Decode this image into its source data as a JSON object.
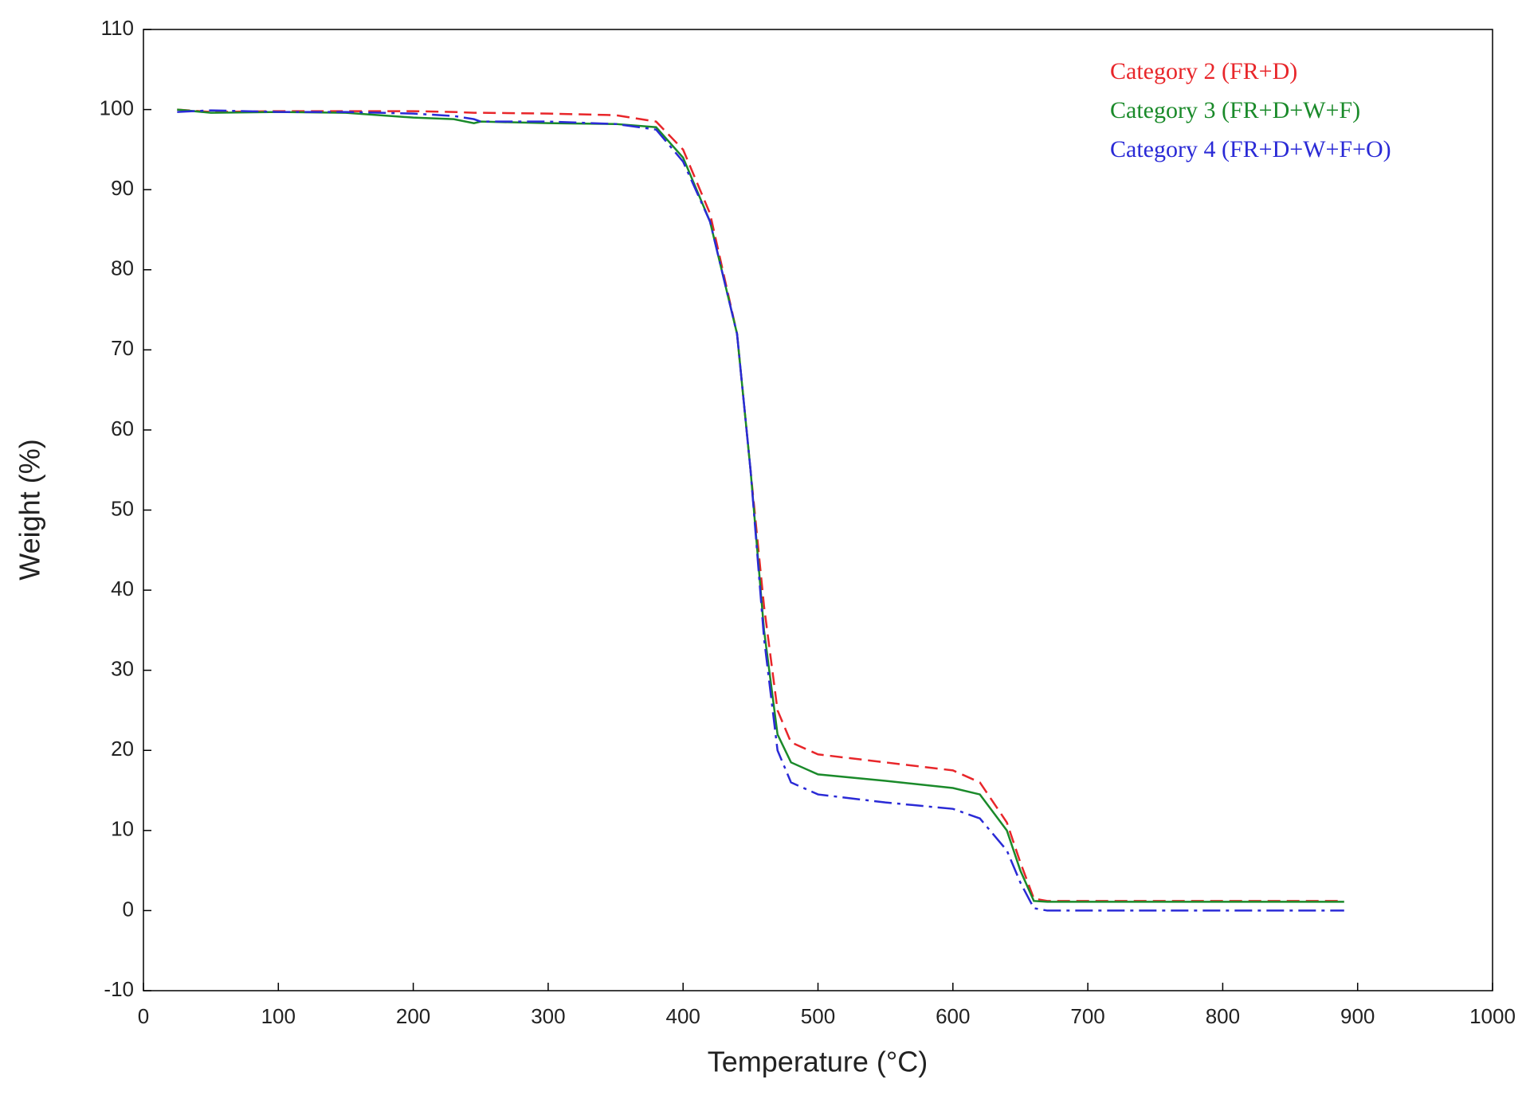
{
  "chart_data": {
    "type": "line",
    "x_label": "Temperature (°C)",
    "y_label": "Weight (%)",
    "xlim": [
      0,
      1000
    ],
    "ylim": [
      -10,
      110
    ],
    "xticks": [
      0,
      100,
      200,
      300,
      400,
      500,
      600,
      700,
      800,
      900,
      1000
    ],
    "yticks": [
      -10,
      0,
      10,
      20,
      30,
      40,
      50,
      60,
      70,
      80,
      90,
      100,
      110
    ],
    "legend": "top-right",
    "x": [
      25,
      50,
      100,
      150,
      200,
      230,
      245,
      250,
      300,
      350,
      380,
      400,
      420,
      440,
      450,
      460,
      470,
      480,
      500,
      550,
      600,
      620,
      640,
      650,
      660,
      670,
      700,
      800,
      890
    ],
    "series": [
      {
        "name": "Category 2 (FR+D)",
        "color": "#e8262a",
        "dash": "dashed",
        "values": [
          100,
          99.7,
          99.8,
          99.8,
          99.8,
          99.7,
          99.6,
          99.6,
          99.5,
          99.3,
          98.5,
          95,
          87,
          72,
          55,
          38,
          25,
          21,
          19.5,
          18.5,
          17.5,
          16,
          11,
          6,
          1.5,
          1.2,
          1.2,
          1.2,
          1.2
        ]
      },
      {
        "name": "Category 3 (FR+D+W+F)",
        "color": "#1a8a2a",
        "dash": "solid",
        "values": [
          100,
          99.6,
          99.7,
          99.6,
          99,
          98.8,
          98.3,
          98.5,
          98.3,
          98.2,
          97.8,
          94,
          86,
          72,
          55,
          35,
          22,
          18.5,
          17,
          16.2,
          15.3,
          14.5,
          10,
          5,
          1.2,
          1.1,
          1.1,
          1.1,
          1.1
        ]
      },
      {
        "name": "Category 4 (FR+D+W+F+O)",
        "color": "#2a2ad6",
        "dash": "dashdot",
        "values": [
          99.7,
          99.9,
          99.7,
          99.7,
          99.5,
          99.2,
          98.8,
          98.5,
          98.5,
          98.2,
          97.5,
          93.5,
          86,
          72,
          55,
          34,
          20,
          16,
          14.5,
          13.5,
          12.7,
          11.5,
          7.5,
          3.5,
          0.3,
          0,
          0,
          0,
          0
        ]
      }
    ]
  }
}
